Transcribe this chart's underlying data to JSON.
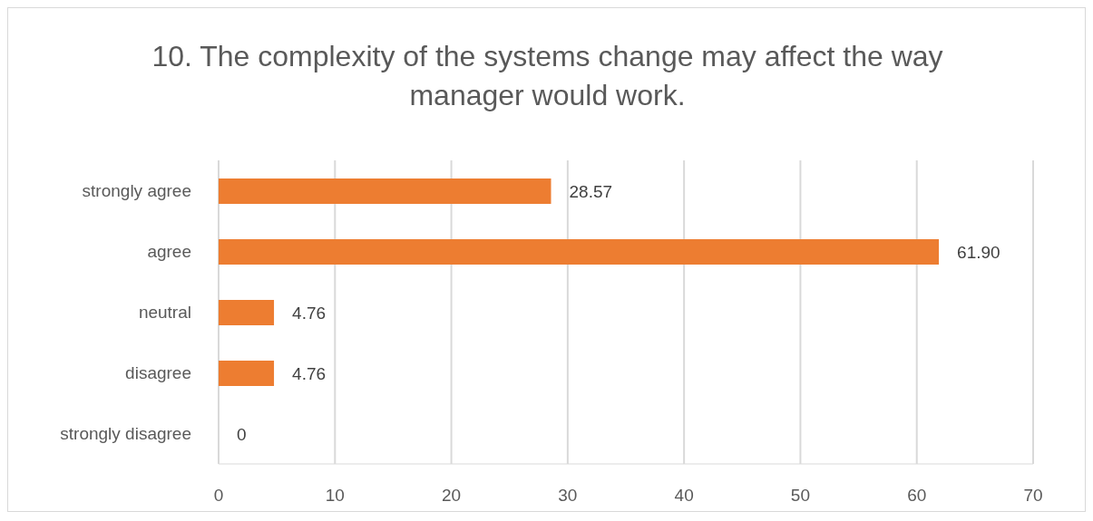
{
  "chart_data": {
    "type": "bar",
    "orientation": "horizontal",
    "title": "10. The complexity of the systems change may affect the way manager would work.",
    "categories": [
      "strongly agree",
      "agree",
      "neutral",
      "disagree",
      "strongly disagree"
    ],
    "values": [
      28.57,
      61.9,
      4.76,
      4.76,
      0
    ],
    "value_labels": [
      "28.57",
      "61.90",
      "4.76",
      "4.76",
      "0"
    ],
    "color": "#ed7d31",
    "xlim": [
      0,
      70
    ],
    "xticks": [
      0,
      10,
      20,
      30,
      40,
      50,
      60,
      70
    ],
    "grid": "x"
  }
}
